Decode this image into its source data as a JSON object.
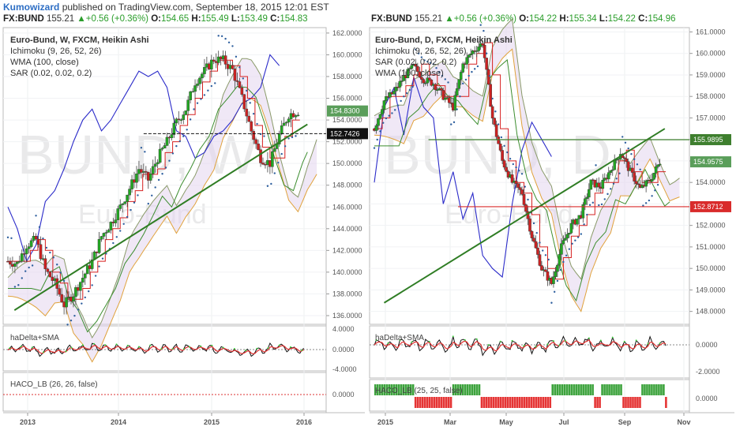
{
  "header": {
    "author": "Kumowizard",
    "published": "published on TradingView.com, September 18, 2015 12:01 EST"
  },
  "chart_data": [
    {
      "type": "line",
      "panel": "left",
      "symbol": "FX:BUND",
      "quote": {
        "last": "155.21",
        "change": "+0.56 (+0.36%)",
        "o": "154.65",
        "h": "155.49",
        "l": "153.49",
        "c": "154.83"
      },
      "title": "Euro-Bund, W, FXCM, Heikin Ashi",
      "indicators": [
        "Ichimoku (9, 26, 52, 26)",
        "WMA (100, close)",
        "SAR (0.02, 0.02, 0.2)"
      ],
      "watermark": {
        "symbol": "BUND",
        "interval": "W",
        "name": "Euro-Bund"
      },
      "yticks": [
        "162.0000",
        "160.0000",
        "158.0000",
        "156.0000",
        "154.0000",
        "152.0000",
        "150.0000",
        "148.0000",
        "146.0000",
        "144.0000",
        "142.0000",
        "140.0000",
        "138.0000",
        "136.0000"
      ],
      "xticks": [
        "2013",
        "2014",
        "2015",
        "2016"
      ],
      "price_labels": [
        {
          "value": "154.8300",
          "color": "#5a9e5a"
        },
        {
          "value": "152.7426",
          "color": "#111111"
        }
      ],
      "x": [
        0,
        10,
        20,
        30,
        40,
        50,
        60,
        70,
        80,
        90,
        100,
        110,
        120,
        130,
        140,
        150,
        160,
        170,
        180,
        190,
        200,
        210,
        220,
        230,
        240,
        250,
        260,
        270,
        280,
        290,
        300,
        310
      ],
      "price": [
        141.0,
        140.8,
        142.5,
        143.0,
        140.2,
        139.0,
        137.0,
        138.0,
        139.5,
        141.0,
        143.3,
        144.5,
        146.0,
        147.7,
        149.5,
        148.5,
        150.5,
        152.0,
        153.8,
        155.0,
        157.5,
        158.5,
        159.6,
        159.5,
        158.6,
        156.0,
        153.0,
        150.5,
        150.0,
        152.6,
        154.5,
        154.8
      ],
      "chikou": [
        [
          0,
          146.0
        ],
        [
          10,
          144.0
        ],
        [
          20,
          141.0
        ],
        [
          30,
          142.5
        ],
        [
          40,
          146.5
        ],
        [
          50,
          147.5
        ],
        [
          60,
          149.5
        ],
        [
          70,
          152.0
        ],
        [
          80,
          154.0
        ],
        [
          90,
          155.0
        ],
        [
          100,
          153.0
        ],
        [
          110,
          154.0
        ],
        [
          120,
          155.5
        ],
        [
          130,
          157.0
        ],
        [
          140,
          158.5
        ],
        [
          150,
          158.0
        ],
        [
          160,
          158.5
        ],
        [
          170,
          157.0
        ],
        [
          180,
          153.0
        ],
        [
          190,
          152.5
        ],
        [
          200,
          150.5
        ],
        [
          210,
          151.0
        ],
        [
          220,
          152.5
        ],
        [
          230,
          153.0
        ],
        [
          240,
          154.0
        ],
        [
          250,
          155.5
        ],
        [
          260,
          156.0
        ],
        [
          270,
          157.0
        ],
        [
          280,
          160.0
        ],
        [
          290,
          159.0
        ]
      ],
      "trendline": [
        [
          7,
          136.5
        ],
        [
          320,
          153.6
        ]
      ],
      "hline": 152.7426,
      "sub_panels": [
        {
          "name": "haDelta+SMA",
          "yticks": [
            "4.0000",
            "0.0000",
            "-4.0000"
          ]
        },
        {
          "name": "HACO_LB (26, 26, false)",
          "yticks": [
            "0.0000"
          ]
        }
      ]
    },
    {
      "type": "line",
      "panel": "right",
      "symbol": "FX:BUND",
      "quote": {
        "last": "155.21",
        "change": "+0.56 (+0.36%)",
        "o": "154.22",
        "h": "155.34",
        "l": "154.22",
        "c": "154.96"
      },
      "title": "Euro-Bund, D, FXCM, Heikin Ashi",
      "indicators": [
        "Ichimoku (9, 26, 52, 26)",
        "SAR (0.02, 0.02, 0.2)",
        "WMA (100, close)"
      ],
      "watermark": {
        "symbol": "BUND",
        "interval": "D",
        "name": "Euro-Bund"
      },
      "yticks": [
        "161.0000",
        "160.0000",
        "159.0000",
        "158.0000",
        "157.0000",
        "156.0000",
        "155.0000",
        "154.0000",
        "153.0000",
        "152.0000",
        "151.0000",
        "150.0000",
        "149.0000",
        "148.0000"
      ],
      "xticks": [
        "2015",
        "Mar",
        "May",
        "Jul",
        "Sep",
        "Nov"
      ],
      "price_labels": [
        {
          "value": "155.9895",
          "color": "#3e7f2e"
        },
        {
          "value": "154.9575",
          "color": "#5a9e5a"
        },
        {
          "value": "152.8712",
          "color": "#d92b2b"
        }
      ],
      "x": [
        0,
        10,
        20,
        30,
        40,
        50,
        60,
        70,
        80,
        90,
        100,
        110,
        120,
        130,
        140,
        150,
        160,
        170,
        180,
        190,
        200,
        210,
        220,
        230,
        240,
        250,
        260,
        270,
        280,
        290
      ],
      "price": [
        156.5,
        157.8,
        158.2,
        158.9,
        159.4,
        158.8,
        158.6,
        158.0,
        157.5,
        159.5,
        160.1,
        160.5,
        157.0,
        155.0,
        154.0,
        153.5,
        151.5,
        150.0,
        149.3,
        151.0,
        152.0,
        152.5,
        154.0,
        153.8,
        154.6,
        155.4,
        154.5,
        153.7,
        154.1,
        154.96
      ],
      "chikou": [
        [
          0,
          154.0
        ],
        [
          10,
          157.5
        ],
        [
          20,
          158.4
        ],
        [
          30,
          156.2
        ],
        [
          40,
          158.9
        ],
        [
          50,
          157.5
        ],
        [
          60,
          157.0
        ],
        [
          70,
          153.0
        ],
        [
          80,
          154.5
        ],
        [
          90,
          152.3
        ],
        [
          100,
          153.5
        ],
        [
          110,
          150.6
        ],
        [
          120,
          150.0
        ],
        [
          130,
          149.6
        ],
        [
          140,
          153.0
        ],
        [
          150,
          155.5
        ],
        [
          160,
          156.8
        ],
        [
          170,
          156.0
        ],
        [
          180,
          155.2
        ]
      ],
      "trendline": [
        [
          10,
          148.4
        ],
        [
          295,
          156.5
        ]
      ],
      "hlines": [
        155.9895,
        152.8712
      ],
      "sub_panels": [
        {
          "name": "haDelta+SMA",
          "yticks": [
            "0.0000",
            "-2.0000"
          ]
        },
        {
          "name": "HACO_LB (25, 25, false)",
          "yticks": [
            "0.0000"
          ]
        }
      ]
    }
  ],
  "colors": {
    "up": "#22a722",
    "down": "#cc2222",
    "cloud": "#e4d6ee",
    "wma": "#2b2bc9",
    "sar": "#2e5f9e",
    "trend": "#2f7d24",
    "kijun": "#d62020",
    "tenkan": "#7fba4b"
  }
}
